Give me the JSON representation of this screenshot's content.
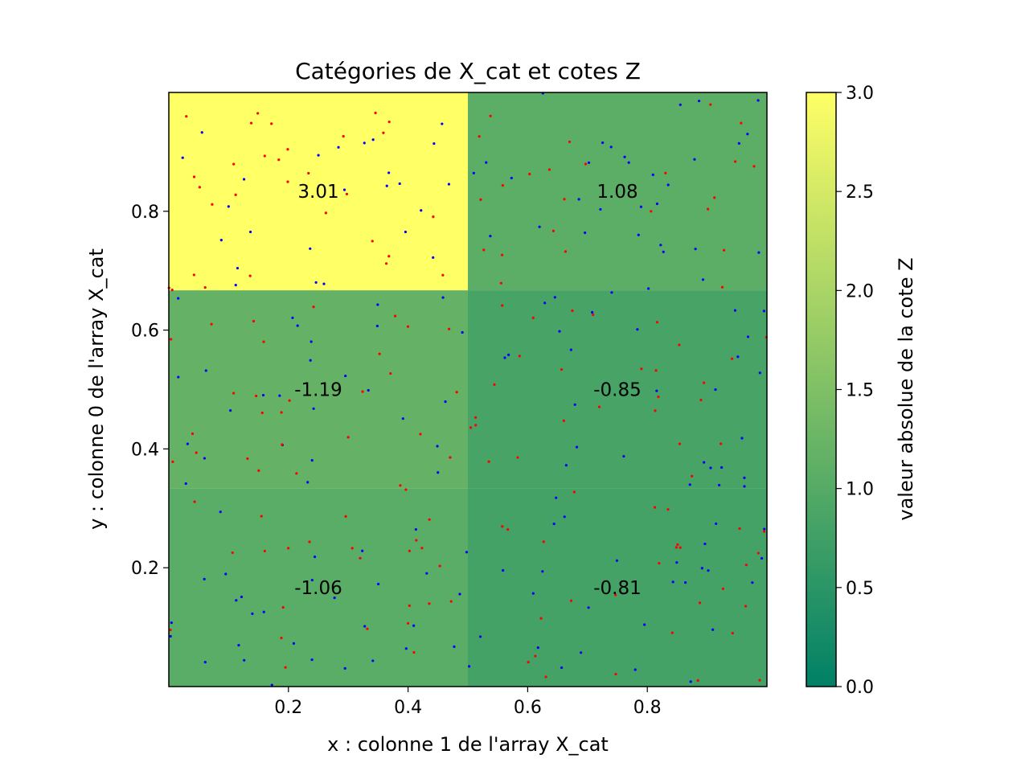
{
  "chart_data": {
    "type": "heatmap",
    "title": "Catégories de X_cat et cotes Z",
    "xlabel": "x : colonne 1 de l'array X_cat",
    "ylabel": "y : colonne 0 de l'array X_cat",
    "xlim": [
      0.0,
      1.0
    ],
    "ylim": [
      0.0,
      1.0
    ],
    "x_ticks": [
      0.2,
      0.4,
      0.6,
      0.8
    ],
    "x_tick_labels": [
      "0.2",
      "0.4",
      "0.6",
      "0.8"
    ],
    "y_ticks": [
      0.2,
      0.4,
      0.6,
      0.8
    ],
    "y_tick_labels": [
      "0.2",
      "0.4",
      "0.6",
      "0.8"
    ],
    "x_edges": [
      0.0,
      0.5,
      1.0
    ],
    "y_edges": [
      0.0,
      0.333,
      0.667,
      1.0
    ],
    "cells": [
      {
        "row": 0,
        "col": 0,
        "value": -1.06,
        "label": "-1.06"
      },
      {
        "row": 0,
        "col": 1,
        "value": -0.81,
        "label": "-0.81"
      },
      {
        "row": 1,
        "col": 0,
        "value": -1.19,
        "label": "-1.19"
      },
      {
        "row": 1,
        "col": 1,
        "value": -0.85,
        "label": "-0.85"
      },
      {
        "row": 2,
        "col": 0,
        "value": 3.01,
        "label": "3.01"
      },
      {
        "row": 2,
        "col": 1,
        "value": 1.08,
        "label": "1.08"
      }
    ],
    "colorbar": {
      "label": "valeur absolue de la cote Z",
      "range": [
        0.0,
        3.0
      ],
      "ticks": [
        0.0,
        0.5,
        1.0,
        1.5,
        2.0,
        2.5,
        3.0
      ],
      "tick_labels": [
        "0.0",
        "0.5",
        "1.0",
        "1.5",
        "2.0",
        "2.5",
        "3.0"
      ],
      "colormap": "summer",
      "color_low": "#008066",
      "color_high": "#ffff66"
    },
    "scatter_colors": [
      "#ff0000",
      "#0000ff"
    ],
    "scatter_counts_per_cell": [
      55,
      55,
      55,
      55,
      55,
      55
    ]
  }
}
